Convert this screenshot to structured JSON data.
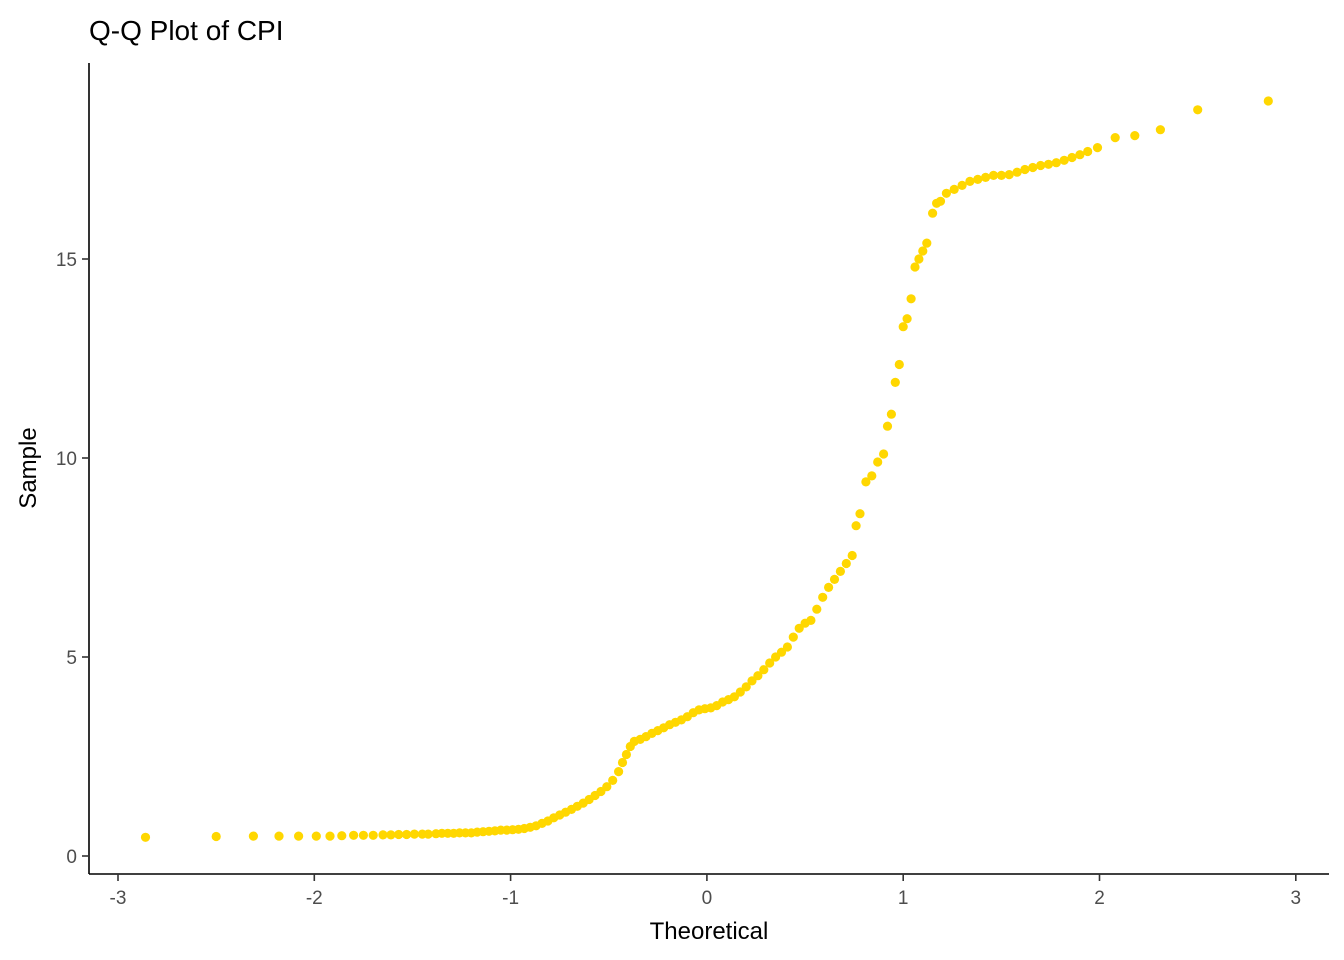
{
  "chart_data": {
    "type": "scatter",
    "title": "Q-Q Plot of CPI",
    "xlabel": "Theoretical",
    "ylabel": "Sample",
    "xlim": [
      -3.0,
      3.0
    ],
    "ylim": [
      -0.3,
      19.5
    ],
    "xticks": [
      -3,
      -2,
      -1,
      0,
      1,
      2,
      3
    ],
    "yticks": [
      0,
      5,
      10,
      15
    ],
    "grid": false,
    "legend": "none",
    "point_color": "#FFD700",
    "series": [
      {
        "values": [
          [
            -2.86,
            0.47
          ],
          [
            -2.5,
            0.49
          ],
          [
            -2.31,
            0.5
          ],
          [
            -2.18,
            0.5
          ],
          [
            -2.08,
            0.5
          ],
          [
            -1.99,
            0.5
          ],
          [
            -1.92,
            0.5
          ],
          [
            -1.86,
            0.51
          ],
          [
            -1.8,
            0.52
          ],
          [
            -1.75,
            0.52
          ],
          [
            -1.7,
            0.52
          ],
          [
            -1.65,
            0.53
          ],
          [
            -1.61,
            0.53
          ],
          [
            -1.57,
            0.54
          ],
          [
            -1.53,
            0.54
          ],
          [
            -1.49,
            0.55
          ],
          [
            -1.45,
            0.55
          ],
          [
            -1.42,
            0.55
          ],
          [
            -1.38,
            0.56
          ],
          [
            -1.35,
            0.57
          ],
          [
            -1.32,
            0.57
          ],
          [
            -1.29,
            0.57
          ],
          [
            -1.26,
            0.58
          ],
          [
            -1.23,
            0.58
          ],
          [
            -1.2,
            0.58
          ],
          [
            -1.17,
            0.6
          ],
          [
            -1.14,
            0.61
          ],
          [
            -1.11,
            0.62
          ],
          [
            -1.08,
            0.63
          ],
          [
            -1.05,
            0.65
          ],
          [
            -1.02,
            0.65
          ],
          [
            -0.99,
            0.66
          ],
          [
            -0.96,
            0.67
          ],
          [
            -0.93,
            0.69
          ],
          [
            -0.9,
            0.72
          ],
          [
            -0.87,
            0.76
          ],
          [
            -0.84,
            0.82
          ],
          [
            -0.81,
            0.88
          ],
          [
            -0.78,
            0.96
          ],
          [
            -0.75,
            1.03
          ],
          [
            -0.72,
            1.1
          ],
          [
            -0.69,
            1.17
          ],
          [
            -0.66,
            1.25
          ],
          [
            -0.63,
            1.33
          ],
          [
            -0.6,
            1.42
          ],
          [
            -0.57,
            1.52
          ],
          [
            -0.54,
            1.62
          ],
          [
            -0.51,
            1.74
          ],
          [
            -0.48,
            1.9
          ],
          [
            -0.45,
            2.12
          ],
          [
            -0.43,
            2.35
          ],
          [
            -0.41,
            2.55
          ],
          [
            -0.39,
            2.75
          ],
          [
            -0.37,
            2.88
          ],
          [
            -0.34,
            2.93
          ],
          [
            -0.31,
            3.0
          ],
          [
            -0.28,
            3.08
          ],
          [
            -0.25,
            3.15
          ],
          [
            -0.22,
            3.22
          ],
          [
            -0.19,
            3.3
          ],
          [
            -0.16,
            3.36
          ],
          [
            -0.13,
            3.42
          ],
          [
            -0.1,
            3.5
          ],
          [
            -0.07,
            3.6
          ],
          [
            -0.04,
            3.67
          ],
          [
            -0.01,
            3.7
          ],
          [
            0.02,
            3.72
          ],
          [
            0.05,
            3.78
          ],
          [
            0.08,
            3.87
          ],
          [
            0.11,
            3.93
          ],
          [
            0.14,
            4.0
          ],
          [
            0.17,
            4.12
          ],
          [
            0.2,
            4.25
          ],
          [
            0.23,
            4.4
          ],
          [
            0.26,
            4.53
          ],
          [
            0.29,
            4.68
          ],
          [
            0.32,
            4.85
          ],
          [
            0.35,
            5.0
          ],
          [
            0.38,
            5.12
          ],
          [
            0.41,
            5.25
          ],
          [
            0.44,
            5.5
          ],
          [
            0.47,
            5.72
          ],
          [
            0.5,
            5.85
          ],
          [
            0.53,
            5.92
          ],
          [
            0.56,
            6.2
          ],
          [
            0.59,
            6.5
          ],
          [
            0.62,
            6.75
          ],
          [
            0.65,
            6.95
          ],
          [
            0.68,
            7.15
          ],
          [
            0.71,
            7.35
          ],
          [
            0.74,
            7.55
          ],
          [
            0.76,
            8.3
          ],
          [
            0.78,
            8.6
          ],
          [
            0.81,
            9.4
          ],
          [
            0.84,
            9.55
          ],
          [
            0.87,
            9.9
          ],
          [
            0.9,
            10.1
          ],
          [
            0.92,
            10.8
          ],
          [
            0.94,
            11.1
          ],
          [
            0.96,
            11.9
          ],
          [
            0.98,
            12.35
          ],
          [
            1.0,
            13.3
          ],
          [
            1.02,
            13.5
          ],
          [
            1.04,
            14.0
          ],
          [
            1.06,
            14.8
          ],
          [
            1.08,
            15.0
          ],
          [
            1.1,
            15.2
          ],
          [
            1.12,
            15.4
          ],
          [
            1.15,
            16.15
          ],
          [
            1.17,
            16.4
          ],
          [
            1.19,
            16.45
          ],
          [
            1.22,
            16.65
          ],
          [
            1.26,
            16.75
          ],
          [
            1.3,
            16.85
          ],
          [
            1.34,
            16.95
          ],
          [
            1.38,
            17.0
          ],
          [
            1.42,
            17.05
          ],
          [
            1.46,
            17.1
          ],
          [
            1.5,
            17.1
          ],
          [
            1.54,
            17.12
          ],
          [
            1.58,
            17.18
          ],
          [
            1.62,
            17.25
          ],
          [
            1.66,
            17.3
          ],
          [
            1.7,
            17.35
          ],
          [
            1.74,
            17.38
          ],
          [
            1.78,
            17.42
          ],
          [
            1.82,
            17.48
          ],
          [
            1.86,
            17.55
          ],
          [
            1.9,
            17.62
          ],
          [
            1.94,
            17.7
          ],
          [
            1.99,
            17.8
          ],
          [
            2.08,
            18.05
          ],
          [
            2.18,
            18.1
          ],
          [
            2.31,
            18.25
          ],
          [
            2.5,
            18.75
          ],
          [
            2.86,
            18.97
          ]
        ]
      }
    ]
  }
}
